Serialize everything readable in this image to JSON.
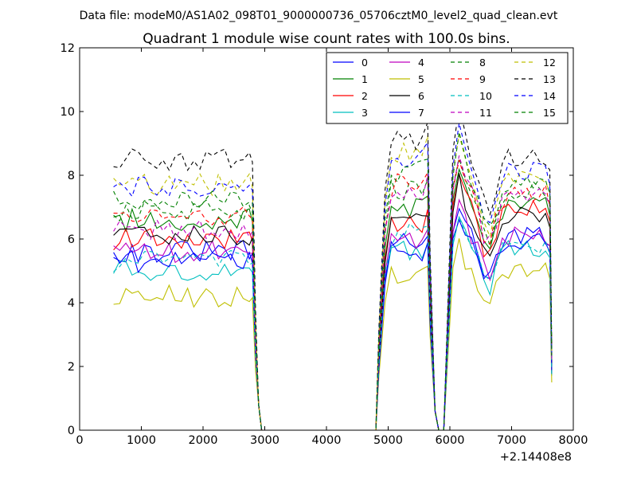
{
  "chart_data": {
    "type": "line",
    "supertitle": "Data file: modeM0/AS1A02_098T01_9000000736_05706cztM0_level2_quad_clean.evt",
    "title": "Quadrant 1 module wise count rates with 100.0s bins.",
    "xlabel": "",
    "ylabel": "",
    "x_offset_label": "+2.14408e8",
    "xlim": [
      0,
      8000
    ],
    "ylim": [
      0,
      12
    ],
    "xticks": [
      "0",
      "1000",
      "2000",
      "3000",
      "4000",
      "5000",
      "6000",
      "7000",
      "8000"
    ],
    "yticks": [
      "0",
      "2",
      "4",
      "6",
      "8",
      "10",
      "12"
    ],
    "grid": false,
    "legend_position": "top-right",
    "series": [
      {
        "name": "0",
        "color": "#0000ff",
        "style": "solid",
        "base": [
          5.6,
          5.8,
          6.1
        ]
      },
      {
        "name": "1",
        "color": "#008000",
        "style": "solid",
        "base": [
          6.6,
          7.0,
          7.1
        ]
      },
      {
        "name": "2",
        "color": "#ff0000",
        "style": "solid",
        "base": [
          6.0,
          6.6,
          6.9
        ]
      },
      {
        "name": "3",
        "color": "#00bfbf",
        "style": "solid",
        "base": [
          5.0,
          5.6,
          5.7
        ]
      },
      {
        "name": "4",
        "color": "#bf00bf",
        "style": "solid",
        "base": [
          5.6,
          6.0,
          6.1
        ]
      },
      {
        "name": "5",
        "color": "#bfbf00",
        "style": "solid",
        "base": [
          4.2,
          4.9,
          5.0
        ]
      },
      {
        "name": "6",
        "color": "#000000",
        "style": "solid",
        "base": [
          6.1,
          6.4,
          6.7
        ]
      },
      {
        "name": "7",
        "color": "#0000ff",
        "style": "solid",
        "base": [
          5.3,
          5.6,
          5.9
        ]
      },
      {
        "name": "8",
        "color": "#008000",
        "style": "dashed",
        "base": [
          6.9,
          7.5,
          7.5
        ]
      },
      {
        "name": "9",
        "color": "#ff0000",
        "style": "dashed",
        "base": [
          6.7,
          7.7,
          7.4
        ]
      },
      {
        "name": "10",
        "color": "#00bfbf",
        "style": "dashed",
        "base": [
          5.3,
          6.1,
          5.8
        ]
      },
      {
        "name": "11",
        "color": "#bf00bf",
        "style": "dashed",
        "base": [
          6.3,
          7.6,
          7.4
        ]
      },
      {
        "name": "12",
        "color": "#bfbf00",
        "style": "dashed",
        "base": [
          7.7,
          8.8,
          7.9
        ]
      },
      {
        "name": "13",
        "color": "#000000",
        "style": "dashed",
        "base": [
          8.5,
          9.2,
          8.6
        ]
      },
      {
        "name": "14",
        "color": "#0000ff",
        "style": "dashed",
        "base": [
          7.6,
          8.6,
          8.1
        ]
      },
      {
        "name": "15",
        "color": "#008000",
        "style": "dashed",
        "base": [
          7.2,
          8.1,
          7.8
        ]
      }
    ]
  }
}
